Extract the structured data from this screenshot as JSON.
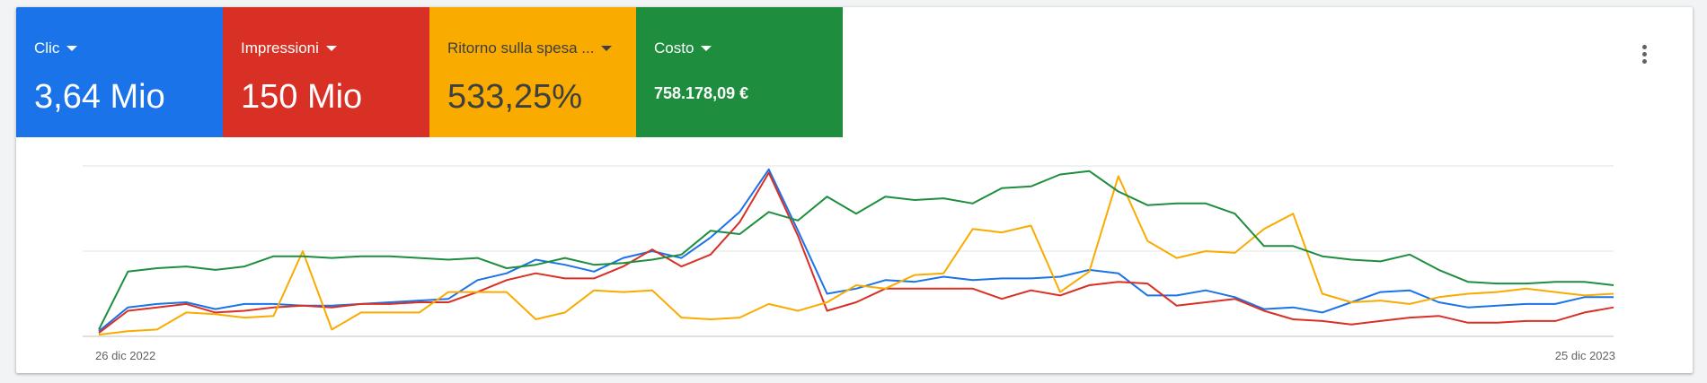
{
  "metrics": [
    {
      "label": "Clic",
      "value": "3,64 Mio",
      "color": "#1a73e8"
    },
    {
      "label": "Impressioni",
      "value": "150 Mio",
      "color": "#d93025"
    },
    {
      "label": "Ritorno sulla spesa ...",
      "value": "533,25%",
      "color": "#f9ab00"
    },
    {
      "label": "Costo",
      "value": "758.178,09 €",
      "color": "#1e8e3e"
    }
  ],
  "more_menu_icon": "more-vert-icon",
  "chart_data": {
    "type": "line",
    "x_start_label": "26 dic 2022",
    "x_end_label": "25 dic 2023",
    "grid": true,
    "normalized_scale": true,
    "series": [
      {
        "name": "Clic",
        "color": "#1a73e8",
        "values": [
          3,
          17,
          19,
          20,
          16,
          19,
          19,
          18,
          18,
          19,
          20,
          21,
          22,
          33,
          37,
          45,
          42,
          38,
          46,
          50,
          46,
          58,
          73,
          98,
          62,
          25,
          28,
          33,
          32,
          35,
          33,
          34,
          34,
          35,
          39,
          37,
          24,
          24,
          27,
          23,
          16,
          17,
          14,
          20,
          26,
          27,
          20,
          17,
          18,
          19,
          19,
          23,
          23
        ]
      },
      {
        "name": "Impressioni",
        "color": "#d93025",
        "values": [
          2,
          15,
          17,
          19,
          14,
          15,
          17,
          18,
          17,
          19,
          19,
          20,
          20,
          26,
          33,
          37,
          34,
          34,
          41,
          51,
          41,
          48,
          67,
          96,
          59,
          15,
          20,
          28,
          28,
          28,
          28,
          22,
          27,
          24,
          30,
          32,
          31,
          18,
          20,
          22,
          15,
          10,
          9,
          7,
          9,
          11,
          12,
          8,
          8,
          9,
          9,
          14,
          17
        ]
      },
      {
        "name": "Ritorno sulla spesa pubblicitaria",
        "color": "#f9ab00",
        "values": [
          1,
          3,
          4,
          14,
          13,
          11,
          12,
          50,
          4,
          14,
          14,
          14,
          26,
          26,
          26,
          10,
          14,
          27,
          26,
          27,
          11,
          10,
          11,
          19,
          15,
          20,
          30,
          28,
          36,
          37,
          63,
          61,
          65,
          26,
          38,
          94,
          56,
          46,
          50,
          49,
          63,
          72,
          25,
          20,
          21,
          19,
          23,
          25,
          26,
          28,
          26,
          24,
          25
        ]
      },
      {
        "name": "Costo",
        "color": "#1e8e3e",
        "values": [
          4,
          38,
          40,
          41,
          39,
          41,
          47,
          47,
          46,
          47,
          47,
          46,
          45,
          46,
          40,
          42,
          46,
          42,
          43,
          45,
          48,
          62,
          60,
          73,
          68,
          82,
          72,
          82,
          80,
          81,
          78,
          87,
          88,
          95,
          97,
          85,
          77,
          78,
          78,
          72,
          53,
          53,
          47,
          45,
          44,
          48,
          39,
          32,
          31,
          31,
          32,
          32,
          30
        ]
      }
    ]
  }
}
